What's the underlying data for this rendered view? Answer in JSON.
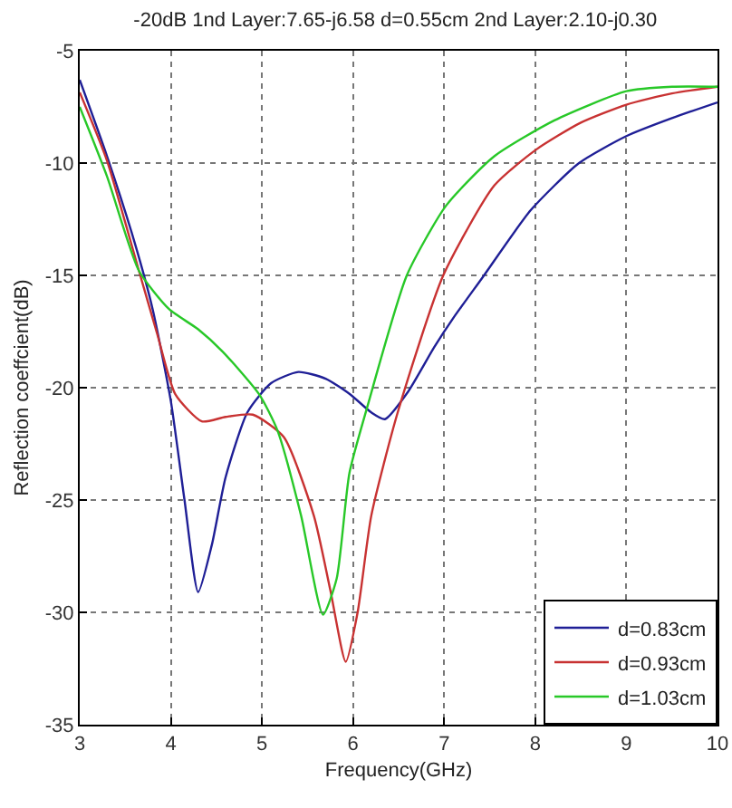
{
  "chart_data": {
    "type": "line",
    "title": "-20dB 1nd Layer:7.65-j6.58 d=0.55cm 2nd Layer:2.10-j0.30",
    "xlabel": "Frequency(GHz)",
    "ylabel": "Reflection coeffcient(dB)",
    "xlim": [
      3,
      10
    ],
    "xticks": [
      3,
      4,
      5,
      6,
      7,
      8,
      9,
      10
    ],
    "ylim": [
      -35,
      -5
    ],
    "yticks": [
      -35,
      -30,
      -25,
      -20,
      -15,
      -10,
      -5
    ],
    "grid": true,
    "legend": "bottom right",
    "line_style": "solid",
    "marker": "none",
    "series": [
      {
        "name": "d=0.83cm",
        "color": "#1f1f96",
        "x": [
          3,
          3.3,
          3.6,
          3.8,
          4.0,
          4.15,
          4.3,
          4.45,
          4.6,
          4.84,
          5.1,
          5.4,
          5.7,
          5.97,
          6.2,
          6.35,
          6.6,
          6.89,
          7.1,
          7.42,
          7.95,
          8.48,
          9.0,
          9.5,
          10
        ],
        "values": [
          -6.3,
          -9.7,
          -13.5,
          -16.5,
          -20.6,
          -25,
          -29.1,
          -27,
          -24,
          -21.1,
          -19.8,
          -19.3,
          -19.6,
          -20.3,
          -21.1,
          -21.4,
          -20.2,
          -18.2,
          -16.9,
          -15.1,
          -12.1,
          -10,
          -8.8,
          -8,
          -7.3
        ]
      },
      {
        "name": "d=0.93cm",
        "color": "#c83232",
        "x": [
          3,
          3.3,
          3.65,
          3.85,
          4.05,
          4.34,
          4.6,
          4.9,
          5.24,
          5.57,
          5.75,
          5.92,
          6.05,
          6.2,
          6.49,
          6.99,
          7.55,
          8.01,
          8.5,
          9.0,
          9.5,
          10
        ],
        "values": [
          -6.85,
          -9.9,
          -14.8,
          -17.6,
          -20.3,
          -21.5,
          -21.3,
          -21.2,
          -22.2,
          -25.7,
          -29,
          -32.2,
          -30,
          -25.7,
          -21.1,
          -15,
          -11,
          -9.4,
          -8.2,
          -7.4,
          -6.9,
          -6.6
        ]
      },
      {
        "name": "d=1.03cm",
        "color": "#28c828",
        "x": [
          3,
          3.3,
          3.65,
          3.98,
          4.3,
          4.57,
          4.97,
          5.17,
          5.43,
          5.67,
          5.82,
          5.96,
          6.16,
          6.59,
          7.02,
          7.55,
          8.21,
          9.0,
          9.5,
          10
        ],
        "values": [
          -7.5,
          -10.6,
          -14.8,
          -16.5,
          -17.4,
          -18.4,
          -20.3,
          -21.9,
          -25.7,
          -30.1,
          -28.5,
          -23.8,
          -20.8,
          -15,
          -11.9,
          -9.7,
          -8.1,
          -6.8,
          -6.6,
          -6.6
        ]
      }
    ]
  }
}
